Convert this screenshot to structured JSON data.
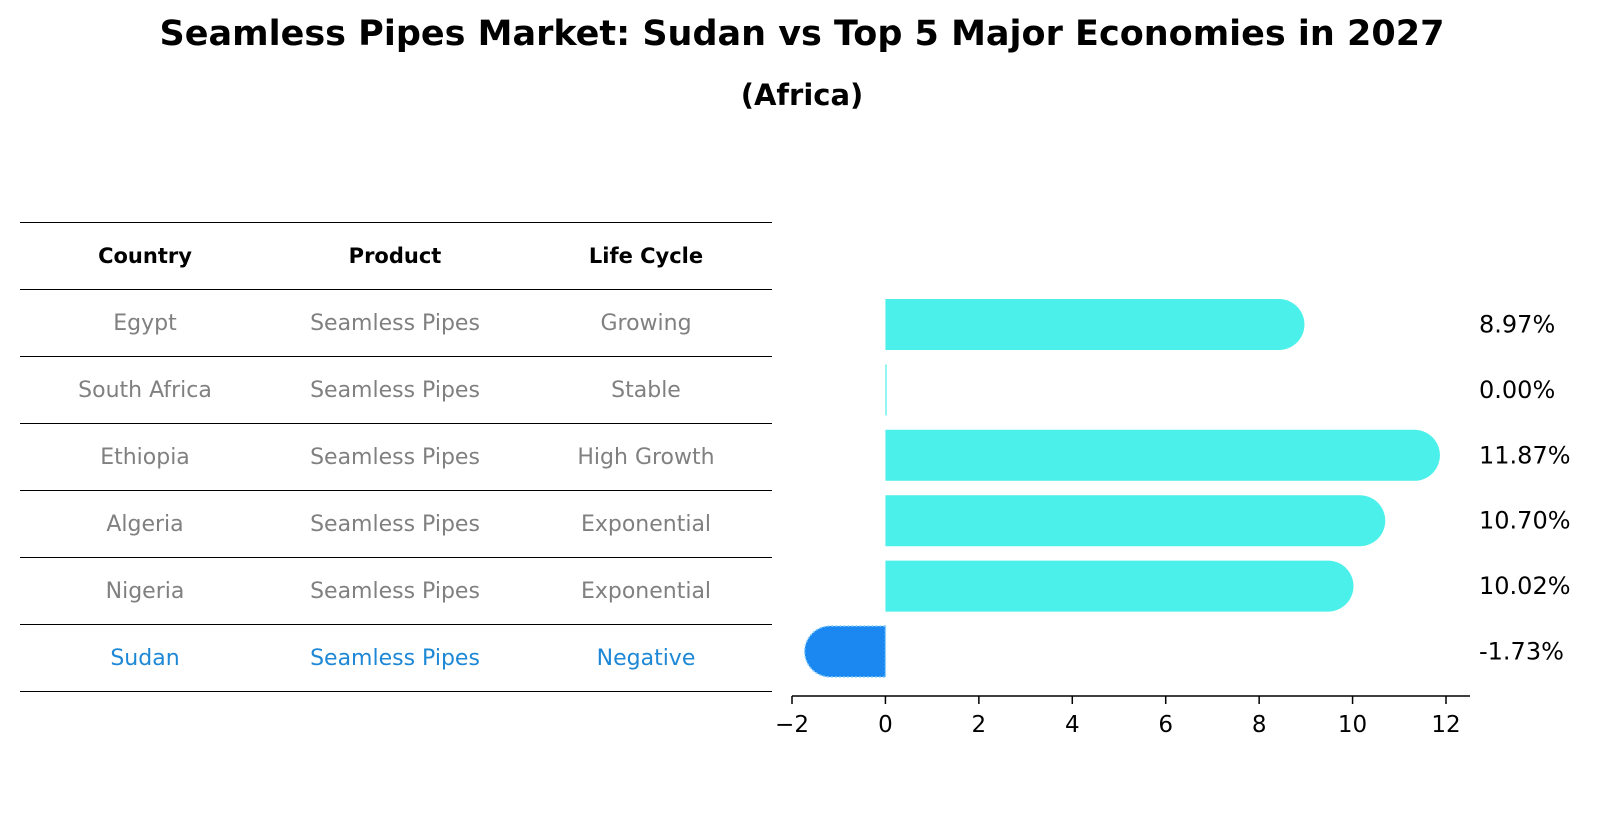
{
  "header": {
    "title": "Seamless Pipes Market: Sudan vs Top 5 Major Economies in 2027",
    "subtitle": "(Africa)"
  },
  "table": {
    "columns": [
      "Country",
      "Product",
      "Life Cycle"
    ],
    "rows": [
      {
        "country": "Egypt",
        "product": "Seamless Pipes",
        "life_cycle": "Growing"
      },
      {
        "country": "South Africa",
        "product": "Seamless Pipes",
        "life_cycle": "Stable"
      },
      {
        "country": "Ethiopia",
        "product": "Seamless Pipes",
        "life_cycle": "High Growth"
      },
      {
        "country": "Algeria",
        "product": "Seamless Pipes",
        "life_cycle": "Exponential"
      },
      {
        "country": "Nigeria",
        "product": "Seamless Pipes",
        "life_cycle": "Exponential"
      },
      {
        "country": "Sudan",
        "product": "Seamless Pipes",
        "life_cycle": "Negative"
      }
    ],
    "highlight_color": "#1e88d6",
    "text_color": "#808080"
  },
  "chart_data": {
    "type": "bar",
    "orientation": "horizontal",
    "categories": [
      "Egypt",
      "South Africa",
      "Ethiopia",
      "Algeria",
      "Nigeria",
      "Sudan"
    ],
    "values": [
      8.97,
      0.0,
      11.87,
      10.7,
      10.02,
      -1.73
    ],
    "value_labels": [
      "8.97%",
      "0.00%",
      "11.87%",
      "10.70%",
      "10.02%",
      "-1.73%"
    ],
    "xlim": [
      -2.4,
      12.6
    ],
    "xticks": [
      -2,
      0,
      2,
      4,
      6,
      8,
      10,
      12
    ],
    "xtick_labels": [
      "−2",
      "0",
      "2",
      "4",
      "6",
      "8",
      "10",
      "12"
    ],
    "colors": {
      "positive": "#4cf0ea",
      "negative": "#1a88f0"
    },
    "grid": false
  }
}
